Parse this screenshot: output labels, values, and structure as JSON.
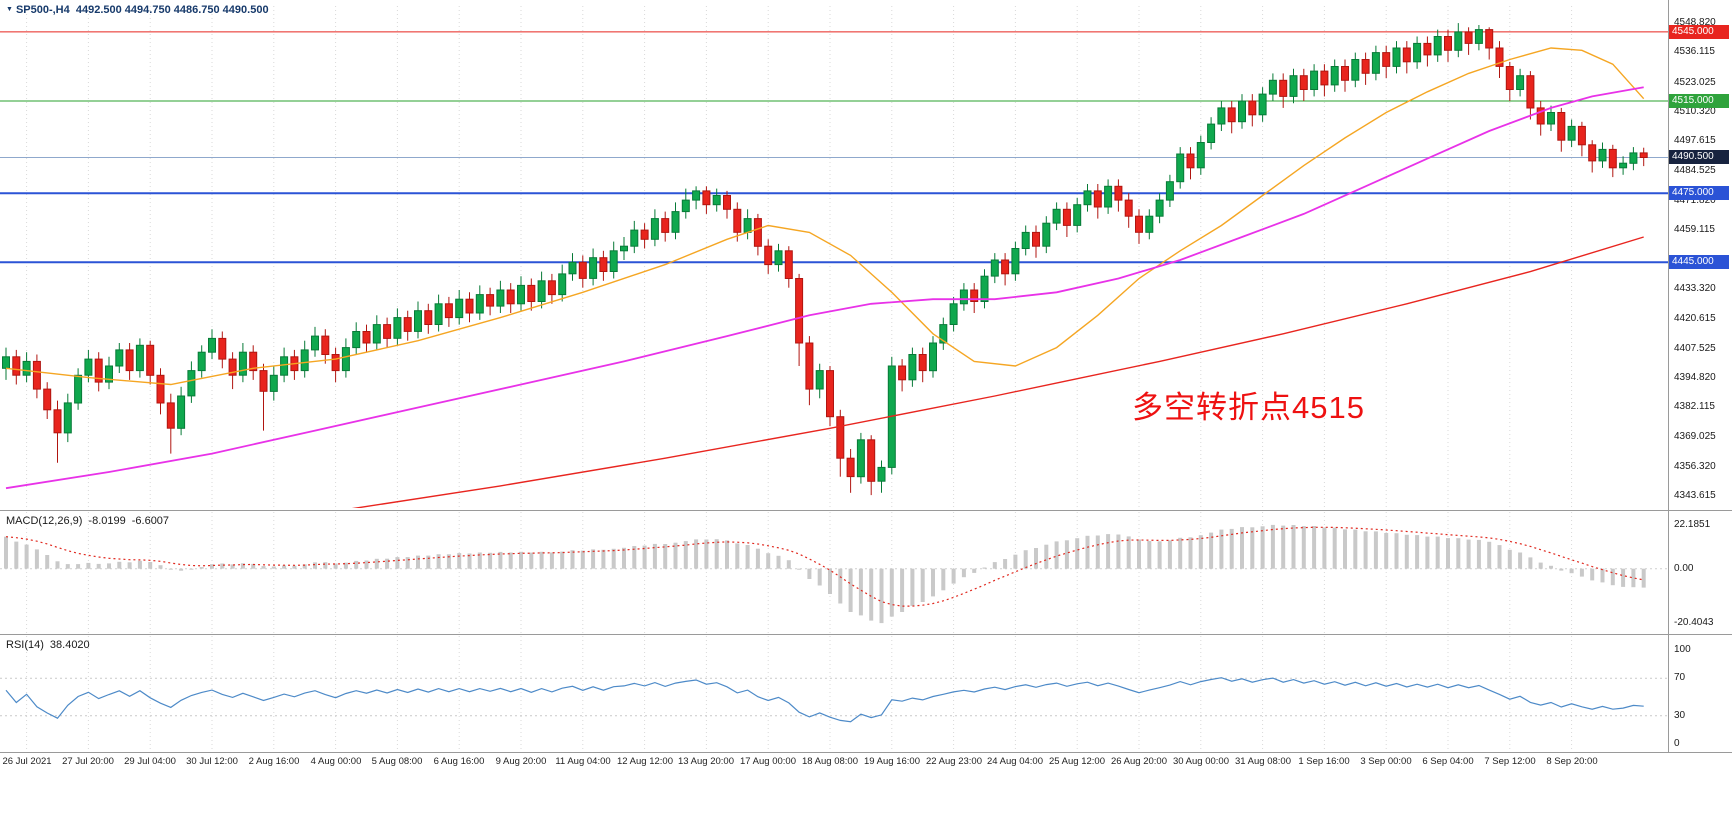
{
  "header": {
    "symbol_period": "SP500-,H4",
    "ohlc": "4492.500 4494.750 4486.750 4490.500"
  },
  "icons": {
    "chart_menu_arrow": "▼"
  },
  "annotation": {
    "text": "多空转折点4515",
    "color": "#ee1111"
  },
  "colors": {
    "up_body": "#0fa84e",
    "up_border": "#077a37",
    "down_body": "#e8241d",
    "down_border": "#b01510",
    "ma_fast": "#f5a623",
    "ma_mid": "#e832e8",
    "ma_slow": "#e8251f",
    "grid": "#d9d9d9",
    "axis_text": "#1a1a1a",
    "line_red": "#e8251f",
    "line_green": "#2aa12e",
    "line_blue": "#2b53d6",
    "current_price_line": "#8fa8cc",
    "macd_hist": "#c9c9c9",
    "macd_signal": "#e0281e",
    "rsi_line": "#4d8ac8"
  },
  "chart_data": {
    "type": "candlestick",
    "symbol": "SP500-",
    "timeframe": "H4",
    "title": "SP500-,H4 4492.500 4494.750 4486.750 4490.500",
    "x_labels": [
      "26 Jul 2021",
      "27 Jul 20:00",
      "29 Jul 04:00",
      "30 Jul 12:00",
      "2 Aug 16:00",
      "4 Aug 00:00",
      "5 Aug 08:00",
      "6 Aug 16:00",
      "9 Aug 20:00",
      "11 Aug 04:00",
      "12 Aug 12:00",
      "13 Aug 20:00",
      "17 Aug 00:00",
      "18 Aug 08:00",
      "19 Aug 16:00",
      "22 Aug 23:00",
      "24 Aug 04:00",
      "25 Aug 12:00",
      "26 Aug 20:00",
      "30 Aug 00:00",
      "31 Aug 08:00",
      "1 Sep 16:00",
      "3 Sep 00:00",
      "6 Sep 04:00",
      "7 Sep 12:00",
      "8 Sep 20:00"
    ],
    "label_start_index": 2,
    "label_every": 6,
    "price_axis": {
      "min": 4341,
      "max": 4554.5,
      "ticks": [
        4548.82,
        4536.115,
        4523.025,
        4510.32,
        4497.615,
        4484.525,
        4471.82,
        4459.115,
        4433.32,
        4420.615,
        4407.525,
        4394.82,
        4382.115,
        4369.025,
        4356.32,
        4343.615
      ]
    },
    "hlines": [
      {
        "price": 4545.0,
        "color": "#e8251f",
        "width": 1,
        "badge_bg": "#e8251f"
      },
      {
        "price": 4515.0,
        "color": "#2aa12e",
        "width": 1,
        "badge_bg": "#2fa33c"
      },
      {
        "price": 4490.5,
        "color": "#8fa8cc",
        "width": 1,
        "badge_bg": "#17233f"
      },
      {
        "price": 4475.0,
        "color": "#2b53d6",
        "width": 2,
        "badge_bg": "#2b53d6"
      },
      {
        "price": 4445.0,
        "color": "#2b53d6",
        "width": 2,
        "badge_bg": "#2b53d6"
      }
    ],
    "candles": [
      [
        4399,
        4408,
        4394,
        4404
      ],
      [
        4404,
        4407,
        4392,
        4396
      ],
      [
        4396,
        4406,
        4393,
        4402
      ],
      [
        4402,
        4405,
        4386,
        4390
      ],
      [
        4390,
        4393,
        4377,
        4381
      ],
      [
        4381,
        4385,
        4358,
        4371
      ],
      [
        4371,
        4388,
        4367,
        4384
      ],
      [
        4384,
        4399,
        4381,
        4396
      ],
      [
        4396,
        4407,
        4393,
        4403
      ],
      [
        4403,
        4406,
        4389,
        4393
      ],
      [
        4393,
        4404,
        4390,
        4400
      ],
      [
        4400,
        4410,
        4397,
        4407
      ],
      [
        4407,
        4410,
        4394,
        4398
      ],
      [
        4398,
        4412,
        4395,
        4409
      ],
      [
        4409,
        4411,
        4392,
        4396
      ],
      [
        4396,
        4399,
        4379,
        4384
      ],
      [
        4384,
        4388,
        4362,
        4373
      ],
      [
        4373,
        4391,
        4370,
        4387
      ],
      [
        4387,
        4402,
        4384,
        4398
      ],
      [
        4398,
        4409,
        4395,
        4406
      ],
      [
        4406,
        4416,
        4403,
        4412
      ],
      [
        4412,
        4415,
        4399,
        4403
      ],
      [
        4403,
        4406,
        4390,
        4396
      ],
      [
        4396,
        4410,
        4393,
        4406
      ],
      [
        4406,
        4409,
        4394,
        4398
      ],
      [
        4398,
        4401,
        4372,
        4389
      ],
      [
        4389,
        4400,
        4385,
        4396
      ],
      [
        4396,
        4408,
        4393,
        4404
      ],
      [
        4404,
        4407,
        4394,
        4398
      ],
      [
        4398,
        4411,
        4395,
        4407
      ],
      [
        4407,
        4417,
        4404,
        4413
      ],
      [
        4413,
        4416,
        4401,
        4405
      ],
      [
        4405,
        4408,
        4393,
        4398
      ],
      [
        4398,
        4412,
        4395,
        4408
      ],
      [
        4408,
        4419,
        4405,
        4415
      ],
      [
        4415,
        4418,
        4406,
        4410
      ],
      [
        4410,
        4422,
        4407,
        4418
      ],
      [
        4418,
        4421,
        4408,
        4412
      ],
      [
        4412,
        4425,
        4409,
        4421
      ],
      [
        4421,
        4424,
        4411,
        4415
      ],
      [
        4415,
        4428,
        4412,
        4424
      ],
      [
        4424,
        4427,
        4414,
        4418
      ],
      [
        4418,
        4431,
        4415,
        4427
      ],
      [
        4427,
        4430,
        4417,
        4421
      ],
      [
        4421,
        4433,
        4418,
        4429
      ],
      [
        4429,
        4432,
        4419,
        4423
      ],
      [
        4423,
        4435,
        4420,
        4431
      ],
      [
        4431,
        4434,
        4422,
        4426
      ],
      [
        4426,
        4437,
        4423,
        4433
      ],
      [
        4433,
        4436,
        4423,
        4427
      ],
      [
        4427,
        4439,
        4424,
        4435
      ],
      [
        4435,
        4438,
        4424,
        4428
      ],
      [
        4428,
        4441,
        4425,
        4437
      ],
      [
        4437,
        4440,
        4427,
        4431
      ],
      [
        4431,
        4444,
        4428,
        4440
      ],
      [
        4440,
        4449,
        4437,
        4445
      ],
      [
        4445,
        4448,
        4434,
        4438
      ],
      [
        4438,
        4451,
        4435,
        4447
      ],
      [
        4447,
        4450,
        4437,
        4441
      ],
      [
        4441,
        4454,
        4438,
        4450
      ],
      [
        4450,
        4456,
        4446,
        4452
      ],
      [
        4452,
        4463,
        4449,
        4459
      ],
      [
        4459,
        4462,
        4451,
        4455
      ],
      [
        4455,
        4468,
        4452,
        4464
      ],
      [
        4464,
        4467,
        4454,
        4458
      ],
      [
        4458,
        4471,
        4455,
        4467
      ],
      [
        4467,
        4477,
        4464,
        4472
      ],
      [
        4472,
        4478,
        4468,
        4476
      ],
      [
        4476,
        4478,
        4466,
        4470
      ],
      [
        4470,
        4477,
        4467,
        4474
      ],
      [
        4474,
        4476,
        4464,
        4468
      ],
      [
        4468,
        4471,
        4454,
        4458
      ],
      [
        4458,
        4468,
        4455,
        4464
      ],
      [
        4464,
        4466,
        4448,
        4452
      ],
      [
        4452,
        4455,
        4440,
        4444
      ],
      [
        4444,
        4453,
        4441,
        4450
      ],
      [
        4450,
        4452,
        4434,
        4438
      ],
      [
        4438,
        4440,
        4400,
        4410
      ],
      [
        4410,
        4413,
        4383,
        4390
      ],
      [
        4390,
        4401,
        4386,
        4398
      ],
      [
        4398,
        4400,
        4374,
        4378
      ],
      [
        4378,
        4381,
        4352,
        4360
      ],
      [
        4360,
        4364,
        4345,
        4352
      ],
      [
        4352,
        4371,
        4349,
        4368
      ],
      [
        4368,
        4370,
        4344,
        4350
      ],
      [
        4350,
        4359,
        4345,
        4356
      ],
      [
        4356,
        4404,
        4353,
        4400
      ],
      [
        4400,
        4403,
        4389,
        4394
      ],
      [
        4394,
        4408,
        4391,
        4405
      ],
      [
        4405,
        4408,
        4393,
        4398
      ],
      [
        4398,
        4413,
        4395,
        4410
      ],
      [
        4410,
        4421,
        4407,
        4418
      ],
      [
        4418,
        4430,
        4415,
        4427
      ],
      [
        4427,
        4436,
        4424,
        4433
      ],
      [
        4433,
        4436,
        4423,
        4428
      ],
      [
        4428,
        4442,
        4425,
        4439
      ],
      [
        4439,
        4449,
        4436,
        4446
      ],
      [
        4446,
        4449,
        4435,
        4440
      ],
      [
        4440,
        4454,
        4437,
        4451
      ],
      [
        4451,
        4461,
        4448,
        4458
      ],
      [
        4458,
        4461,
        4447,
        4452
      ],
      [
        4452,
        4465,
        4449,
        4462
      ],
      [
        4462,
        4471,
        4459,
        4468
      ],
      [
        4468,
        4471,
        4456,
        4461
      ],
      [
        4461,
        4473,
        4458,
        4470
      ],
      [
        4470,
        4479,
        4467,
        4476
      ],
      [
        4476,
        4479,
        4464,
        4469
      ],
      [
        4469,
        4481,
        4466,
        4478
      ],
      [
        4478,
        4481,
        4467,
        4472
      ],
      [
        4472,
        4475,
        4460,
        4465
      ],
      [
        4465,
        4468,
        4453,
        4458
      ],
      [
        4458,
        4468,
        4455,
        4465
      ],
      [
        4465,
        4475,
        4462,
        4472
      ],
      [
        4472,
        4483,
        4469,
        4480
      ],
      [
        4480,
        4495,
        4477,
        4492
      ],
      [
        4492,
        4495,
        4481,
        4486
      ],
      [
        4486,
        4500,
        4483,
        4497
      ],
      [
        4497,
        4508,
        4494,
        4505
      ],
      [
        4505,
        4515,
        4502,
        4512
      ],
      [
        4512,
        4515,
        4501,
        4506
      ],
      [
        4506,
        4518,
        4503,
        4515
      ],
      [
        4515,
        4518,
        4504,
        4509
      ],
      [
        4509,
        4521,
        4506,
        4518
      ],
      [
        4518,
        4527,
        4515,
        4524
      ],
      [
        4524,
        4527,
        4512,
        4517
      ],
      [
        4517,
        4529,
        4514,
        4526
      ],
      [
        4526,
        4529,
        4515,
        4520
      ],
      [
        4520,
        4531,
        4517,
        4528
      ],
      [
        4528,
        4531,
        4517,
        4522
      ],
      [
        4522,
        4533,
        4519,
        4530
      ],
      [
        4530,
        4533,
        4519,
        4524
      ],
      [
        4524,
        4536,
        4521,
        4533
      ],
      [
        4533,
        4536,
        4522,
        4527
      ],
      [
        4527,
        4539,
        4524,
        4536
      ],
      [
        4536,
        4539,
        4525,
        4530
      ],
      [
        4530,
        4541,
        4527,
        4538
      ],
      [
        4538,
        4541,
        4527,
        4532
      ],
      [
        4532,
        4543,
        4529,
        4540
      ],
      [
        4540,
        4543,
        4530,
        4535
      ],
      [
        4535,
        4546,
        4532,
        4543
      ],
      [
        4543,
        4546,
        4532,
        4537
      ],
      [
        4537,
        4548.8,
        4534,
        4545
      ],
      [
        4545,
        4547,
        4535,
        4540
      ],
      [
        4540,
        4548,
        4537,
        4546
      ],
      [
        4546,
        4547,
        4533,
        4538
      ],
      [
        4538,
        4541,
        4525,
        4530
      ],
      [
        4530,
        4532,
        4515,
        4520
      ],
      [
        4520,
        4529,
        4517,
        4526
      ],
      [
        4526,
        4528,
        4507,
        4512
      ],
      [
        4512,
        4515,
        4500,
        4505
      ],
      [
        4505,
        4513,
        4502,
        4510
      ],
      [
        4510,
        4512,
        4493,
        4498
      ],
      [
        4498,
        4507,
        4495,
        4504
      ],
      [
        4504,
        4506,
        4491,
        4496
      ],
      [
        4496,
        4498,
        4484,
        4489
      ],
      [
        4489,
        4497,
        4486,
        4494
      ],
      [
        4494,
        4496,
        4482,
        4486
      ],
      [
        4486,
        4491,
        4483,
        4488
      ],
      [
        4488,
        4495,
        4485,
        4492.5
      ],
      [
        4492.5,
        4494.75,
        4486.75,
        4490.5
      ]
    ],
    "moving_averages": [
      {
        "name": "ma-fast",
        "color": "#f5a623",
        "width": 1.4,
        "anchors": [
          [
            0,
            4399
          ],
          [
            8,
            4395
          ],
          [
            16,
            4392
          ],
          [
            24,
            4399
          ],
          [
            32,
            4403
          ],
          [
            40,
            4411
          ],
          [
            48,
            4421
          ],
          [
            56,
            4432
          ],
          [
            64,
            4444
          ],
          [
            70,
            4455
          ],
          [
            74,
            4461
          ],
          [
            78,
            4458
          ],
          [
            82,
            4448
          ],
          [
            86,
            4432
          ],
          [
            90,
            4414
          ],
          [
            94,
            4402
          ],
          [
            98,
            4400
          ],
          [
            102,
            4408
          ],
          [
            106,
            4422
          ],
          [
            110,
            4438
          ],
          [
            114,
            4450
          ],
          [
            118,
            4461
          ],
          [
            122,
            4474
          ],
          [
            126,
            4487
          ],
          [
            130,
            4499
          ],
          [
            134,
            4510
          ],
          [
            138,
            4519
          ],
          [
            142,
            4527
          ],
          [
            146,
            4533
          ],
          [
            150,
            4538
          ],
          [
            153,
            4537
          ],
          [
            156,
            4531
          ],
          [
            159,
            4516
          ]
        ]
      },
      {
        "name": "ma-mid",
        "color": "#e832e8",
        "width": 1.8,
        "anchors": [
          [
            0,
            4347
          ],
          [
            10,
            4354
          ],
          [
            20,
            4362
          ],
          [
            30,
            4372
          ],
          [
            40,
            4382
          ],
          [
            50,
            4392
          ],
          [
            60,
            4402
          ],
          [
            70,
            4413
          ],
          [
            78,
            4422
          ],
          [
            84,
            4427
          ],
          [
            90,
            4429
          ],
          [
            96,
            4429
          ],
          [
            102,
            4432
          ],
          [
            108,
            4438
          ],
          [
            114,
            4446
          ],
          [
            120,
            4456
          ],
          [
            126,
            4466
          ],
          [
            132,
            4478
          ],
          [
            138,
            4490
          ],
          [
            144,
            4502
          ],
          [
            150,
            4512
          ],
          [
            154,
            4517
          ],
          [
            159,
            4521
          ]
        ]
      },
      {
        "name": "ma-slow",
        "color": "#e8251f",
        "width": 1.4,
        "anchors": [
          [
            0,
            4318
          ],
          [
            16,
            4327
          ],
          [
            32,
            4337
          ],
          [
            48,
            4348
          ],
          [
            64,
            4360
          ],
          [
            80,
            4373
          ],
          [
            96,
            4387
          ],
          [
            112,
            4402
          ],
          [
            124,
            4414
          ],
          [
            136,
            4427
          ],
          [
            148,
            4441
          ],
          [
            159,
            4456
          ]
        ]
      }
    ],
    "macd": {
      "label": "MACD(12,26,9)",
      "value1": "-8.0199",
      "value2": "-6.6007",
      "params": [
        12,
        26,
        9
      ],
      "axis_ticks": [
        "22.1851",
        "0.00",
        "-20.4043"
      ]
    },
    "rsi": {
      "label": "RSI(14)",
      "value": "38.4020",
      "period": 14,
      "levels": [
        70,
        30
      ],
      "axis_ticks": [
        "100",
        "70",
        "30",
        "0"
      ]
    }
  }
}
